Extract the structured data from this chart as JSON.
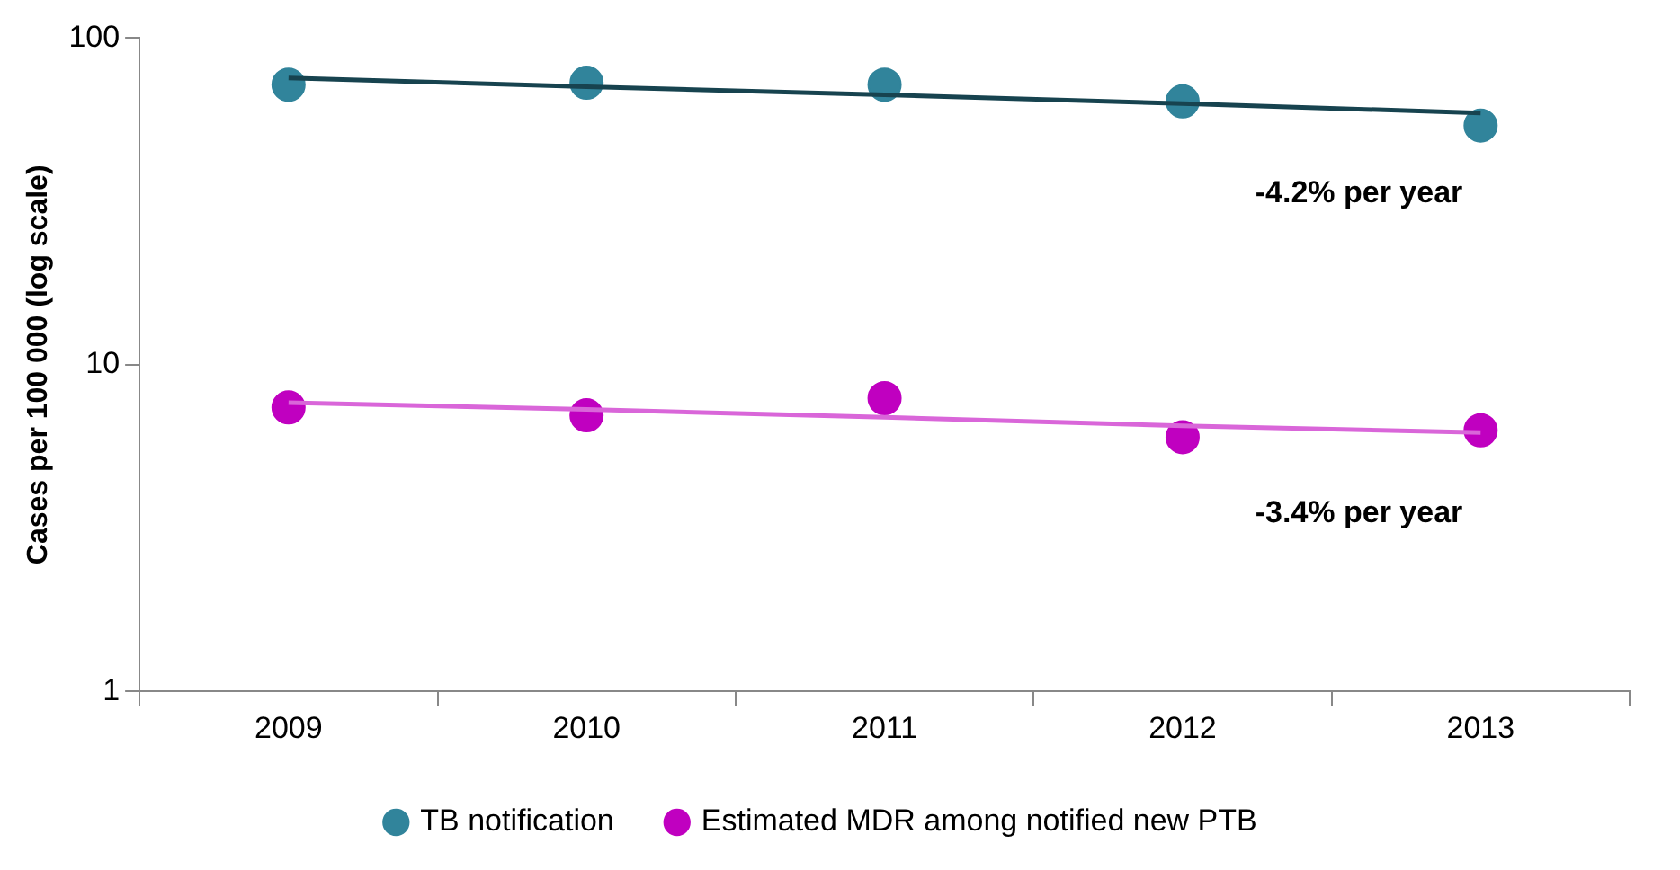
{
  "chart_data": {
    "type": "scatter",
    "ylabel": "Cases per 100 000 (log scale)",
    "categories": [
      "2009",
      "2010",
      "2011",
      "2012",
      "2013"
    ],
    "series": [
      {
        "name": "TB notification",
        "color": "#31849b",
        "values": [
          72,
          73,
          72,
          64,
          54
        ]
      },
      {
        "name": "Estimated MDR among notified new PTB",
        "color": "#c000c0",
        "values": [
          7.4,
          7.0,
          7.9,
          6.0,
          6.3
        ]
      },
      {
        "type": "line",
        "marker": "none",
        "color": "#17434f",
        "values": [
          75.5,
          71,
          67,
          63,
          59
        ]
      },
      {
        "type": "line",
        "marker": "none",
        "color": "#d966d9",
        "values": [
          7.65,
          7.3,
          6.9,
          6.5,
          6.2
        ]
      }
    ],
    "ylim": [
      1,
      100
    ],
    "yticks": [
      1,
      10,
      100
    ],
    "log": true,
    "grid": false,
    "legend": "bottom",
    "marker": "circle",
    "line_style": "solid",
    "annotations": [
      "-4.2% per year",
      "-3.4% per year"
    ]
  }
}
